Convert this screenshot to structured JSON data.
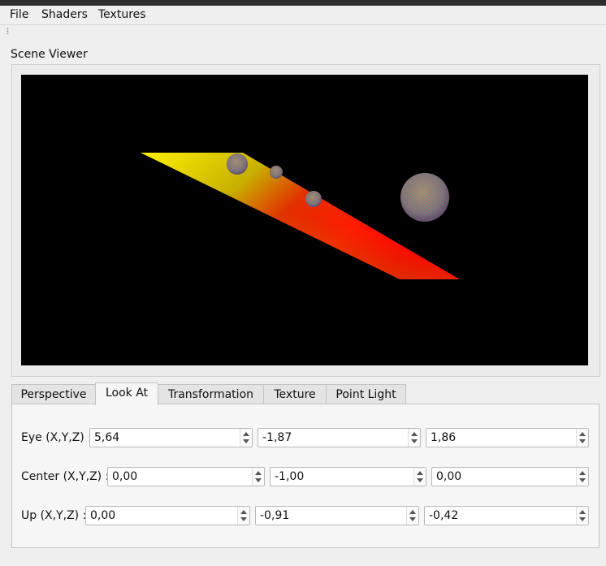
{
  "menu": {
    "items": [
      "File",
      "Shaders",
      "Textures"
    ]
  },
  "scene_viewer": {
    "label": "Scene Viewer"
  },
  "tabs": [
    "Perspective",
    "Look At",
    "Transformation",
    "Texture",
    "Point Light"
  ],
  "active_tab": "Look At",
  "look_at": {
    "eye": {
      "label": "Eye (X,Y,Z) :",
      "values": [
        "5,64",
        "-1,87",
        "1,86"
      ]
    },
    "center": {
      "label": "Center (X,Y,Z) :",
      "values": [
        "0,00",
        "-1,00",
        "0,00"
      ]
    },
    "up": {
      "label": "Up (X,Y,Z) :",
      "values": [
        "0,00",
        "-0,91",
        "-0,42"
      ]
    }
  },
  "colors": {
    "viewport_bg": "#000000",
    "plane_start": "#ffff00",
    "plane_end": "#ff0000"
  }
}
